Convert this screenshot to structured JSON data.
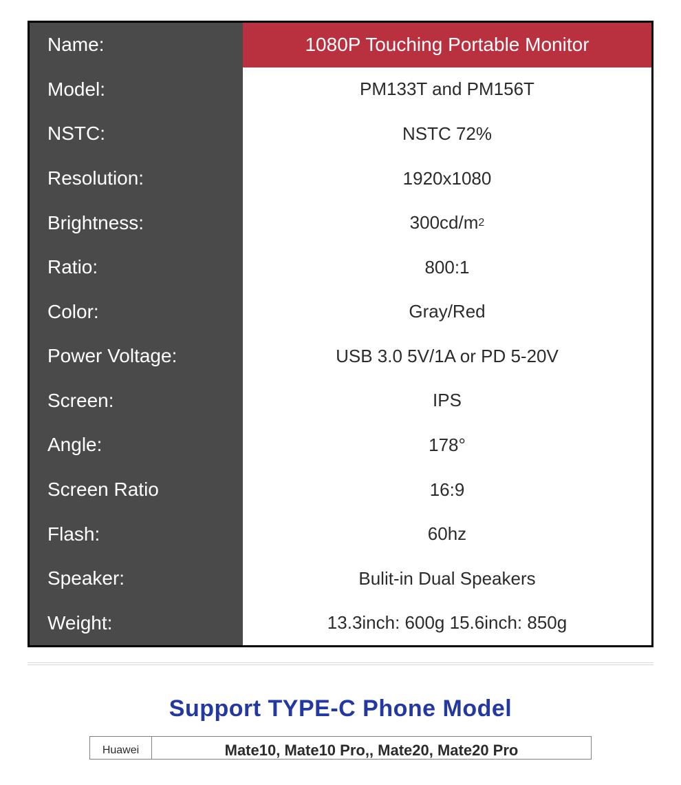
{
  "colors": {
    "label_bg": "#4a4a4a",
    "label_text": "#ffffff",
    "value_text": "#2b2b2b",
    "value_bg": "#ffffff",
    "highlight_bg": "#b9303f",
    "highlight_text": "#ffffff",
    "table_border": "#000000",
    "divider": "#d8d8d8",
    "support_title": "#2338a0",
    "support_border": "#808080"
  },
  "spec_table": {
    "type": "table",
    "label_font_size": 28,
    "value_font_size": 26,
    "rows": [
      {
        "label": "Name:",
        "value": "1080P Touching Portable Monitor",
        "highlight": true
      },
      {
        "label": "Model:",
        "value": "PM133T and PM156T"
      },
      {
        "label": "NSTC:",
        "value": "NSTC 72%"
      },
      {
        "label": "Resolution:",
        "value": "1920x1080"
      },
      {
        "label": "Brightness:",
        "value_html": "300cd/m<sup>2</sup>",
        "value": "300cd/m2"
      },
      {
        "label": "Ratio:",
        "value": "800:1"
      },
      {
        "label": "Color:",
        "value": "Gray/Red"
      },
      {
        "label": "Power Voltage:",
        "value": "USB 3.0 5V/1A or PD 5-20V"
      },
      {
        "label": "Screen:",
        "value": "IPS"
      },
      {
        "label": "Angle:",
        "value": "178°"
      },
      {
        "label": "Screen Ratio",
        "value": "16:9"
      },
      {
        "label": "Flash:",
        "value": "60hz"
      },
      {
        "label": "Speaker:",
        "value": "Bulit-in Dual Speakers"
      },
      {
        "label": "Weight:",
        "value": "13.3inch: 600g  15.6inch: 850g"
      }
    ]
  },
  "support": {
    "title": "Support TYPE-C Phone Model",
    "title_color": "#2338a0",
    "title_font_size": 34,
    "rows": [
      {
        "brand": "Huawei",
        "models": "Mate10, Mate10 Pro,, Mate20, Mate20 Pro"
      }
    ]
  }
}
